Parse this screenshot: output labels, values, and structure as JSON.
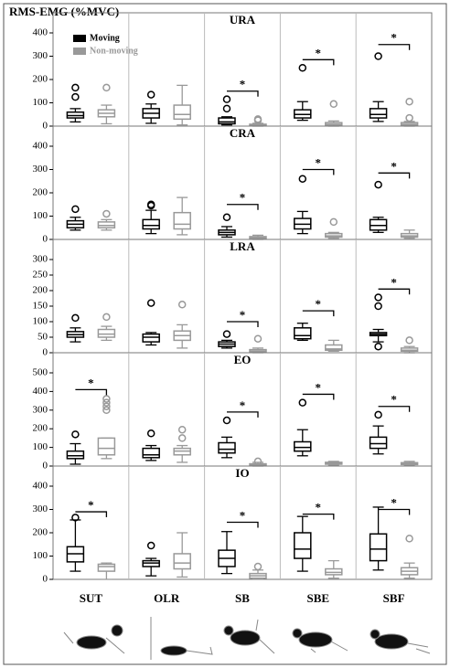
{
  "y_label": "RMS-EMG (%MVC)",
  "categories": [
    "SUT",
    "OLR",
    "SB",
    "SBE",
    "SBF"
  ],
  "legend": [
    {
      "name": "Moving",
      "color": "#000000"
    },
    {
      "name": "Non-moving",
      "color": "#999999"
    }
  ],
  "chart_data": [
    {
      "type": "boxplot",
      "title": "URA",
      "ylim": [
        0,
        400
      ],
      "yticks": [
        0,
        100,
        200,
        300,
        400
      ],
      "series": [
        {
          "boxes": [
            {
              "min": 18,
              "q1": 35,
              "median": 45,
              "q3": 60,
              "max": 75,
              "outliers": [
                125,
                165
              ]
            },
            {
              "min": 12,
              "q1": 35,
              "median": 55,
              "q3": 75,
              "max": 95,
              "outliers": [
                135
              ]
            },
            {
              "min": 5,
              "q1": 10,
              "median": 18,
              "q3": 35,
              "max": 40,
              "outliers": [
                75,
                115
              ]
            },
            {
              "min": 25,
              "q1": 35,
              "median": 50,
              "q3": 70,
              "max": 105,
              "outliers": [
                250
              ]
            },
            {
              "min": 20,
              "q1": 35,
              "median": 50,
              "q3": 75,
              "max": 105,
              "outliers": [
                300
              ]
            }
          ]
        },
        {
          "boxes": [
            {
              "min": 10,
              "q1": 40,
              "median": 55,
              "q3": 70,
              "max": 90,
              "outliers": [
                165
              ]
            },
            {
              "min": 5,
              "q1": 30,
              "median": 50,
              "q3": 90,
              "max": 175,
              "outliers": []
            },
            {
              "min": 0,
              "q1": 2,
              "median": 5,
              "q3": 8,
              "max": 12,
              "outliers": [
                25,
                30
              ]
            },
            {
              "min": 0,
              "q1": 5,
              "median": 8,
              "q3": 15,
              "max": 22,
              "outliers": [
                95
              ]
            },
            {
              "min": 0,
              "q1": 3,
              "median": 8,
              "q3": 15,
              "max": 20,
              "outliers": [
                35,
                105
              ]
            }
          ]
        }
      ],
      "significance": [
        {
          "category": "SB",
          "y": 150,
          "label": "*"
        },
        {
          "category": "SBE",
          "y": 285,
          "label": "*"
        },
        {
          "category": "SBF",
          "y": 350,
          "label": "*"
        }
      ]
    },
    {
      "type": "boxplot",
      "title": "CRA",
      "ylim": [
        0,
        400
      ],
      "yticks": [
        0,
        100,
        200,
        300,
        400
      ],
      "series": [
        {
          "boxes": [
            {
              "min": 40,
              "q1": 50,
              "median": 65,
              "q3": 80,
              "max": 95,
              "outliers": [
                130
              ]
            },
            {
              "min": 25,
              "q1": 45,
              "median": 60,
              "q3": 85,
              "max": 125,
              "outliers": [
                145,
                150
              ]
            },
            {
              "min": 10,
              "q1": 20,
              "median": 30,
              "q3": 40,
              "max": 55,
              "outliers": [
                95
              ]
            },
            {
              "min": 25,
              "q1": 45,
              "median": 65,
              "q3": 90,
              "max": 120,
              "outliers": [
                260
              ]
            },
            {
              "min": 30,
              "q1": 40,
              "median": 60,
              "q3": 85,
              "max": 95,
              "outliers": [
                235
              ]
            }
          ]
        },
        {
          "boxes": [
            {
              "min": 40,
              "q1": 50,
              "median": 60,
              "q3": 75,
              "max": 85,
              "outliers": [
                110
              ]
            },
            {
              "min": 20,
              "q1": 45,
              "median": 65,
              "q3": 115,
              "max": 180,
              "outliers": []
            },
            {
              "min": 0,
              "q1": 5,
              "median": 8,
              "q3": 12,
              "max": 18,
              "outliers": []
            },
            {
              "min": 5,
              "q1": 10,
              "median": 15,
              "q3": 25,
              "max": 30,
              "outliers": [
                75
              ]
            },
            {
              "min": 5,
              "q1": 10,
              "median": 15,
              "q3": 25,
              "max": 40,
              "outliers": []
            }
          ]
        }
      ],
      "significance": [
        {
          "category": "SB",
          "y": 150,
          "label": "*"
        },
        {
          "category": "SBE",
          "y": 300,
          "label": "*"
        },
        {
          "category": "SBF",
          "y": 285,
          "label": "*"
        }
      ]
    },
    {
      "type": "boxplot",
      "title": "LRA",
      "ylim": [
        0,
        300
      ],
      "yticks": [
        0,
        50,
        100,
        150,
        200,
        250,
        300
      ],
      "series": [
        {
          "boxes": [
            {
              "min": 35,
              "q1": 50,
              "median": 58,
              "q3": 68,
              "max": 80,
              "outliers": [
                112
              ]
            },
            {
              "min": 25,
              "q1": 35,
              "median": 50,
              "q3": 60,
              "max": 65,
              "outliers": [
                160
              ]
            },
            {
              "min": 15,
              "q1": 20,
              "median": 28,
              "q3": 35,
              "max": 40,
              "outliers": [
                60
              ]
            },
            {
              "min": 40,
              "q1": 45,
              "median": 55,
              "q3": 80,
              "max": 95,
              "outliers": []
            },
            {
              "min": 35,
              "q1": 55,
              "median": 60,
              "q3": 65,
              "max": 75,
              "outliers": [
                20,
                150,
                178
              ]
            }
          ]
        },
        {
          "boxes": [
            {
              "min": 40,
              "q1": 50,
              "median": 60,
              "q3": 75,
              "max": 85,
              "outliers": [
                115
              ]
            },
            {
              "min": 15,
              "q1": 40,
              "median": 55,
              "q3": 70,
              "max": 90,
              "outliers": [
                155
              ]
            },
            {
              "min": 0,
              "q1": 2,
              "median": 5,
              "q3": 10,
              "max": 15,
              "outliers": [
                45
              ]
            },
            {
              "min": 5,
              "q1": 8,
              "median": 12,
              "q3": 25,
              "max": 40,
              "outliers": []
            },
            {
              "min": 0,
              "q1": 5,
              "median": 8,
              "q3": 15,
              "max": 20,
              "outliers": [
                40
              ]
            }
          ]
        }
      ],
      "significance": [
        {
          "category": "SB",
          "y": 100,
          "label": "*"
        },
        {
          "category": "SBE",
          "y": 135,
          "label": "*"
        },
        {
          "category": "SBF",
          "y": 205,
          "label": "*"
        }
      ]
    },
    {
      "type": "boxplot",
      "title": "EO",
      "ylim": [
        0,
        500
      ],
      "yticks": [
        0,
        100,
        200,
        300,
        400,
        500
      ],
      "series": [
        {
          "boxes": [
            {
              "min": 10,
              "q1": 40,
              "median": 55,
              "q3": 80,
              "max": 120,
              "outliers": [
                170
              ]
            },
            {
              "min": 30,
              "q1": 45,
              "median": 60,
              "q3": 95,
              "max": 110,
              "outliers": [
                175
              ]
            },
            {
              "min": 45,
              "q1": 70,
              "median": 90,
              "q3": 125,
              "max": 155,
              "outliers": [
                245
              ]
            },
            {
              "min": 55,
              "q1": 80,
              "median": 100,
              "q3": 130,
              "max": 195,
              "outliers": [
                340
              ]
            },
            {
              "min": 65,
              "q1": 95,
              "median": 120,
              "q3": 155,
              "max": 215,
              "outliers": [
                275
              ]
            }
          ]
        },
        {
          "boxes": [
            {
              "min": 40,
              "q1": 60,
              "median": 95,
              "q3": 150,
              "max": 150,
              "outliers": [
                300,
                320,
                340,
                360
              ]
            },
            {
              "min": 20,
              "q1": 60,
              "median": 80,
              "q3": 95,
              "max": 110,
              "outliers": [
                150,
                195
              ]
            },
            {
              "min": 0,
              "q1": 3,
              "median": 6,
              "q3": 12,
              "max": 20,
              "outliers": [
                25
              ]
            },
            {
              "min": 5,
              "q1": 10,
              "median": 15,
              "q3": 20,
              "max": 25,
              "outliers": []
            },
            {
              "min": 5,
              "q1": 8,
              "median": 12,
              "q3": 18,
              "max": 25,
              "outliers": []
            }
          ]
        }
      ],
      "significance": [
        {
          "category": "SUT",
          "y": 410,
          "label": "*"
        },
        {
          "category": "SB",
          "y": 290,
          "label": "*"
        },
        {
          "category": "SBE",
          "y": 385,
          "label": "*"
        },
        {
          "category": "SBF",
          "y": 320,
          "label": "*"
        }
      ]
    },
    {
      "type": "boxplot",
      "title": "IO",
      "ylim": [
        0,
        400
      ],
      "yticks": [
        0,
        100,
        200,
        300,
        400
      ],
      "series": [
        {
          "boxes": [
            {
              "min": 35,
              "q1": 75,
              "median": 110,
              "q3": 140,
              "max": 255,
              "outliers": [
                265
              ]
            },
            {
              "min": 15,
              "q1": 55,
              "median": 70,
              "q3": 80,
              "max": 90,
              "outliers": [
                145
              ]
            },
            {
              "min": 25,
              "q1": 55,
              "median": 90,
              "q3": 125,
              "max": 205,
              "outliers": []
            },
            {
              "min": 35,
              "q1": 90,
              "median": 130,
              "q3": 200,
              "max": 270,
              "outliers": []
            },
            {
              "min": 40,
              "q1": 80,
              "median": 130,
              "q3": 195,
              "max": 310,
              "outliers": []
            }
          ]
        },
        {
          "boxes": [
            {
              "min": 0,
              "q1": 35,
              "median": 55,
              "q3": 65,
              "max": 70,
              "outliers": []
            },
            {
              "min": 10,
              "q1": 45,
              "median": 70,
              "q3": 110,
              "max": 200,
              "outliers": []
            },
            {
              "min": 0,
              "q1": 5,
              "median": 15,
              "q3": 25,
              "max": 40,
              "outliers": [
                55
              ]
            },
            {
              "min": 5,
              "q1": 20,
              "median": 30,
              "q3": 45,
              "max": 80,
              "outliers": []
            },
            {
              "min": 5,
              "q1": 20,
              "median": 35,
              "q3": 50,
              "max": 70,
              "outliers": [
                175
              ]
            }
          ]
        }
      ],
      "significance": [
        {
          "category": "SUT",
          "y": 290,
          "label": "*"
        },
        {
          "category": "SB",
          "y": 245,
          "label": "*"
        },
        {
          "category": "SBE",
          "y": 280,
          "label": "*"
        },
        {
          "category": "SBF",
          "y": 300,
          "label": "*"
        }
      ]
    }
  ]
}
